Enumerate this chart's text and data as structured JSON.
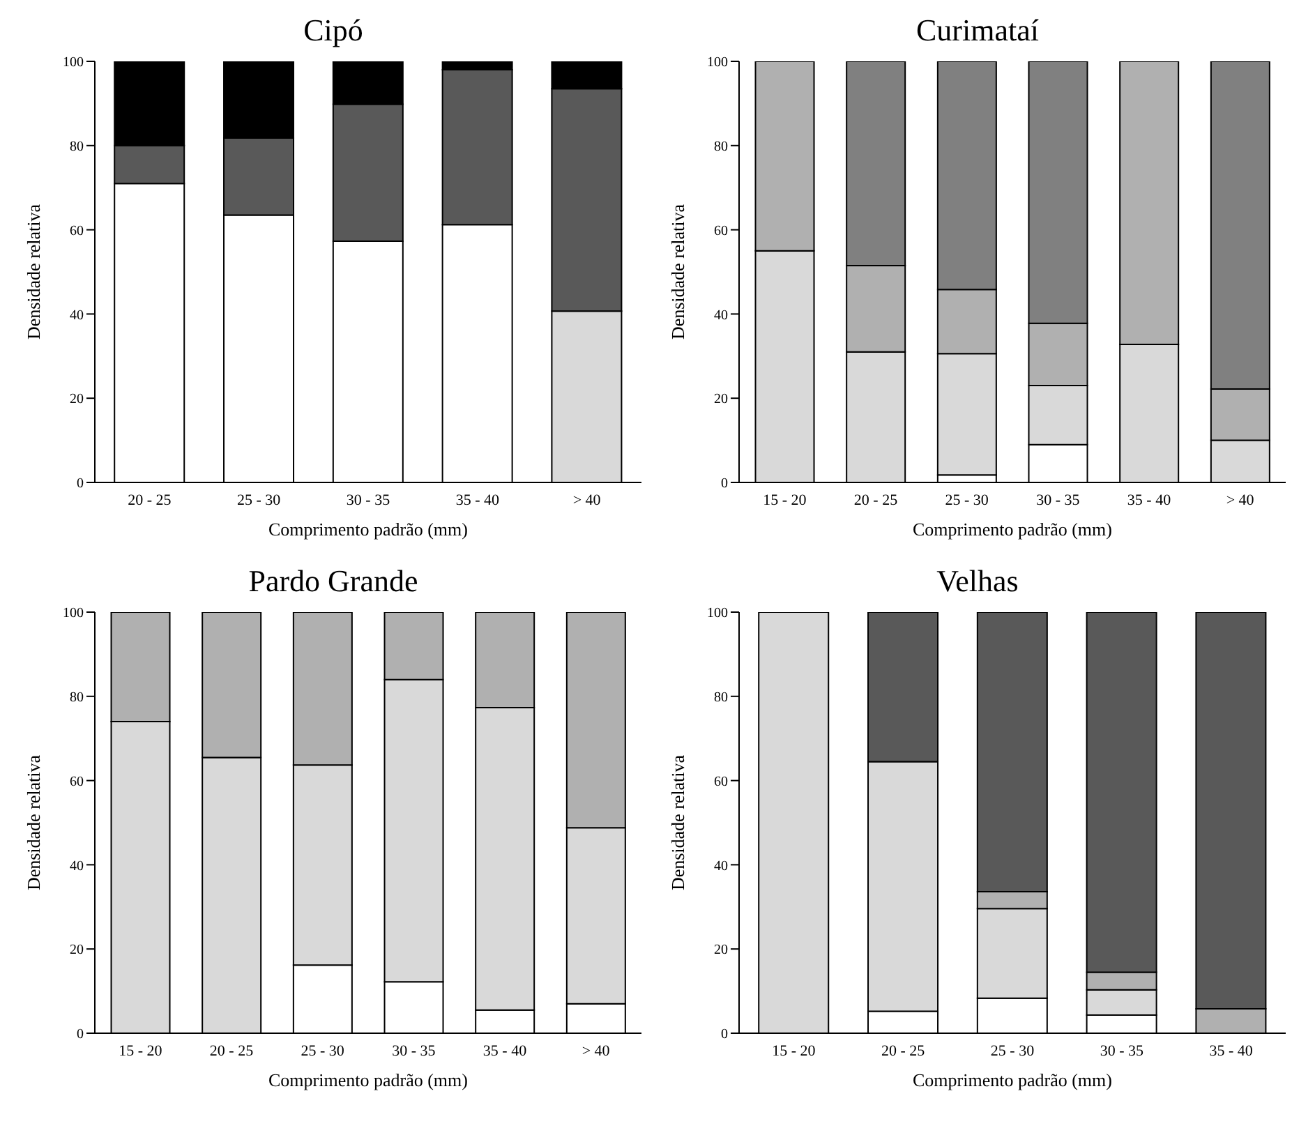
{
  "chart_data": [
    {
      "type": "bar",
      "stacked": true,
      "title": "Cipó",
      "xlabel": "Comprimento padrão (mm)",
      "ylabel": "Densidade relativa",
      "categories": [
        "20 - 25",
        "25 - 30",
        "30 - 35",
        "35 - 40",
        "> 40"
      ],
      "ylim": [
        0,
        100
      ],
      "yticks": [
        0,
        20,
        40,
        60,
        80,
        100
      ],
      "grid": false,
      "legend": false,
      "series": [
        {
          "color": "#ffffff",
          "values": [
            71,
            63.5,
            57.3,
            61.2,
            null
          ]
        },
        {
          "color": "#d9d9d9",
          "values": [
            null,
            null,
            null,
            null,
            40.7
          ]
        },
        {
          "color": "#595959",
          "values": [
            9,
            18.3,
            32.5,
            36.8,
            52.8
          ]
        },
        {
          "color": "#000000",
          "values": [
            20,
            18.2,
            10.2,
            2,
            6.5
          ]
        }
      ]
    },
    {
      "type": "bar",
      "stacked": true,
      "title": "Curimataí",
      "xlabel": "Comprimento padrão (mm)",
      "ylabel": "Densidade relativa",
      "categories": [
        "15 - 20",
        "20 - 25",
        "25 - 30",
        "30 - 35",
        "35 - 40",
        "> 40"
      ],
      "ylim": [
        0,
        100
      ],
      "yticks": [
        0,
        20,
        40,
        60,
        80,
        100
      ],
      "grid": false,
      "legend": false,
      "series": [
        {
          "color": "#ffffff",
          "values": [
            null,
            null,
            1.8,
            9,
            null,
            null
          ]
        },
        {
          "color": "#d9d9d9",
          "values": [
            55,
            31,
            28.8,
            14,
            32.8,
            10
          ]
        },
        {
          "color": "#b0b0b0",
          "values": [
            45,
            20.5,
            15.2,
            14.8,
            67.2,
            12.2
          ]
        },
        {
          "color": "#808080",
          "values": [
            null,
            48.5,
            54.2,
            62.2,
            null,
            77.8
          ]
        }
      ]
    },
    {
      "type": "bar",
      "stacked": true,
      "title": "Pardo Grande",
      "xlabel": "Comprimento padrão (mm)",
      "ylabel": "Densidade relativa",
      "categories": [
        "15 - 20",
        "20 - 25",
        "25 - 30",
        "30 - 35",
        "35 - 40",
        "> 40"
      ],
      "ylim": [
        0,
        100
      ],
      "yticks": [
        0,
        20,
        40,
        60,
        80,
        100
      ],
      "grid": false,
      "legend": false,
      "series": [
        {
          "color": "#ffffff",
          "values": [
            null,
            null,
            16.2,
            12.2,
            5.5,
            7
          ]
        },
        {
          "color": "#d9d9d9",
          "values": [
            74,
            65.5,
            47.5,
            71.8,
            71.8,
            41.8
          ]
        },
        {
          "color": "#b0b0b0",
          "values": [
            26,
            34.5,
            36.3,
            16,
            22.7,
            51.2
          ]
        }
      ]
    },
    {
      "type": "bar",
      "stacked": true,
      "title": "Velhas",
      "xlabel": "Comprimento padrão (mm)",
      "ylabel": "Densidade relativa",
      "categories": [
        "15 - 20",
        "20 - 25",
        "25 - 30",
        "30 - 35",
        "35 - 40"
      ],
      "ylim": [
        0,
        100
      ],
      "yticks": [
        0,
        20,
        40,
        60,
        80,
        100
      ],
      "grid": false,
      "legend": false,
      "series": [
        {
          "color": "#ffffff",
          "values": [
            null,
            5.2,
            8.3,
            4.3,
            null
          ]
        },
        {
          "color": "#d9d9d9",
          "values": [
            100,
            59.3,
            21.3,
            6,
            null
          ]
        },
        {
          "color": "#b0b0b0",
          "values": [
            null,
            null,
            4,
            4.2,
            5.8
          ]
        },
        {
          "color": "#595959",
          "values": [
            null,
            35.5,
            66.4,
            85.5,
            94.2
          ]
        }
      ]
    }
  ]
}
